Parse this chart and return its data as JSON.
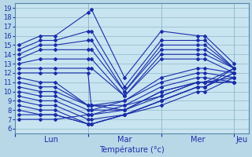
{
  "bg_color": "#b8d8e8",
  "plot_bg_color": "#c8e4f0",
  "line_color": "#1a2eaa",
  "grid_color": "#90b8cc",
  "xlabel": "Température (°c)",
  "ylim": [
    5.5,
    19.5
  ],
  "yticks": [
    6,
    7,
    8,
    9,
    10,
    11,
    12,
    13,
    14,
    15,
    16,
    17,
    18,
    19
  ],
  "day_labels": [
    "Lun",
    "Mar",
    "Mer",
    "Jeu"
  ],
  "series": [
    {
      "x": [
        0.05,
        0.35,
        0.55,
        1.0,
        1.05,
        1.5,
        2.0,
        2.5,
        2.6,
        3.0
      ],
      "y": [
        15.0,
        16.0,
        16.0,
        18.5,
        18.8,
        11.5,
        16.5,
        16.0,
        16.0,
        13.0
      ]
    },
    {
      "x": [
        0.05,
        0.35,
        0.55,
        1.0,
        1.05,
        1.5,
        2.0,
        2.5,
        2.6,
        3.0
      ],
      "y": [
        14.5,
        15.5,
        15.5,
        16.5,
        16.5,
        10.5,
        15.5,
        15.5,
        15.5,
        12.5
      ]
    },
    {
      "x": [
        0.05,
        0.35,
        0.55,
        1.0,
        1.05,
        1.5,
        2.0,
        2.5,
        2.6,
        3.0
      ],
      "y": [
        14.0,
        15.0,
        15.0,
        15.5,
        15.5,
        10.0,
        15.0,
        15.0,
        15.0,
        12.5
      ]
    },
    {
      "x": [
        0.05,
        0.35,
        0.55,
        1.0,
        1.05,
        1.5,
        2.0,
        2.5,
        2.6,
        3.0
      ],
      "y": [
        13.5,
        14.5,
        14.5,
        14.5,
        14.5,
        10.0,
        14.5,
        14.5,
        14.5,
        12.5
      ]
    },
    {
      "x": [
        0.05,
        0.35,
        0.55,
        1.0,
        1.05,
        1.5,
        2.0,
        2.5,
        2.6,
        3.0
      ],
      "y": [
        13.0,
        13.5,
        13.5,
        13.5,
        13.5,
        9.5,
        14.0,
        14.0,
        14.0,
        12.5
      ]
    },
    {
      "x": [
        0.05,
        0.35,
        0.55,
        1.0,
        1.05,
        1.5,
        2.0,
        2.5,
        2.6,
        3.0
      ],
      "y": [
        12.5,
        12.5,
        12.5,
        12.5,
        12.5,
        9.5,
        13.5,
        13.5,
        13.5,
        12.0
      ]
    },
    {
      "x": [
        0.05,
        0.35,
        0.55,
        1.0,
        1.05,
        1.5,
        2.0,
        2.5,
        2.6,
        3.0
      ],
      "y": [
        12.0,
        12.0,
        12.0,
        12.0,
        8.0,
        9.0,
        11.5,
        12.5,
        12.5,
        12.0
      ]
    },
    {
      "x": [
        0.05,
        0.35,
        0.55,
        1.0,
        1.05,
        1.5,
        2.0,
        2.5,
        2.6,
        3.0
      ],
      "y": [
        11.5,
        11.0,
        11.0,
        8.5,
        8.5,
        9.0,
        11.0,
        12.0,
        12.0,
        11.5
      ]
    },
    {
      "x": [
        0.05,
        0.35,
        0.55,
        1.0,
        1.05,
        1.5,
        2.0,
        2.5,
        2.6,
        3.0
      ],
      "y": [
        11.0,
        10.5,
        10.5,
        8.5,
        8.5,
        8.5,
        10.5,
        11.5,
        11.5,
        11.0
      ]
    },
    {
      "x": [
        0.05,
        0.35,
        0.55,
        1.0,
        1.05,
        1.5,
        2.0,
        2.5,
        2.6,
        3.0
      ],
      "y": [
        10.5,
        10.0,
        10.0,
        8.5,
        8.5,
        8.0,
        10.0,
        11.0,
        11.0,
        11.0
      ]
    },
    {
      "x": [
        0.05,
        0.35,
        0.55,
        1.0,
        1.05,
        1.5,
        2.0,
        2.5,
        2.6,
        3.0
      ],
      "y": [
        10.0,
        9.5,
        9.5,
        8.0,
        8.0,
        8.0,
        10.0,
        11.0,
        11.0,
        11.5
      ]
    },
    {
      "x": [
        0.05,
        0.35,
        0.55,
        1.0,
        1.05,
        1.5,
        2.0,
        2.5,
        2.6,
        3.0
      ],
      "y": [
        9.5,
        9.0,
        9.0,
        7.5,
        7.5,
        8.0,
        9.5,
        11.0,
        11.0,
        12.5
      ]
    },
    {
      "x": [
        0.05,
        0.35,
        0.55,
        1.0,
        1.05,
        1.5,
        2.0,
        2.5,
        2.6,
        3.0
      ],
      "y": [
        9.0,
        8.5,
        8.5,
        7.0,
        7.0,
        7.5,
        9.0,
        10.5,
        10.5,
        12.5
      ]
    },
    {
      "x": [
        0.05,
        0.35,
        0.55,
        1.0,
        1.05,
        1.5,
        2.0,
        2.5,
        2.6,
        3.0
      ],
      "y": [
        8.5,
        8.0,
        8.0,
        6.5,
        6.5,
        7.5,
        9.0,
        10.5,
        10.5,
        12.0
      ]
    },
    {
      "x": [
        0.05,
        0.35,
        0.55,
        1.0,
        1.05,
        1.5,
        2.0,
        2.5,
        2.6,
        3.0
      ],
      "y": [
        8.0,
        7.5,
        7.5,
        6.5,
        6.5,
        7.5,
        9.0,
        10.5,
        10.5,
        12.0
      ]
    },
    {
      "x": [
        0.05,
        0.35,
        0.55,
        1.0,
        1.05,
        1.5,
        2.0,
        2.5,
        2.6,
        3.0
      ],
      "y": [
        7.5,
        7.5,
        7.5,
        6.5,
        6.5,
        7.5,
        8.5,
        10.0,
        10.0,
        11.5
      ]
    },
    {
      "x": [
        0.05,
        0.35,
        0.55,
        1.0,
        1.05,
        1.5,
        2.0,
        2.5,
        2.6,
        3.0
      ],
      "y": [
        7.0,
        7.0,
        7.0,
        7.5,
        7.5,
        8.5,
        9.5,
        11.0,
        11.0,
        11.0
      ]
    }
  ]
}
